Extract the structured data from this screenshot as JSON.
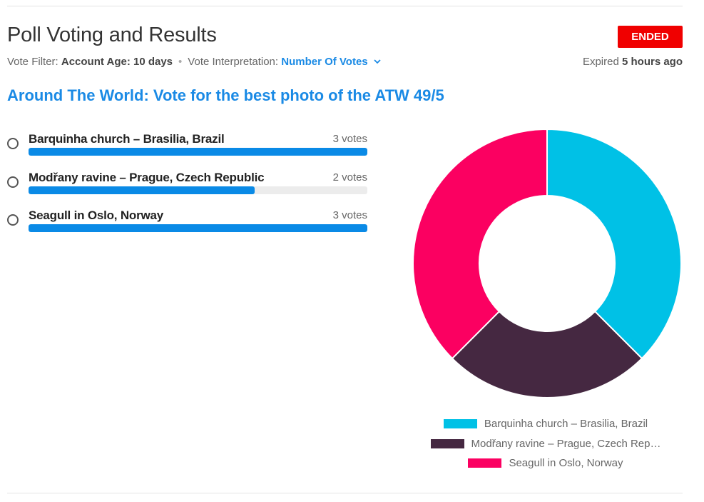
{
  "header": {
    "title": "Poll Voting and Results",
    "status": "ENDED",
    "vote_filter_label": "Vote Filter:",
    "vote_filter_value": "Account Age: 10 days",
    "separator": "•",
    "interpretation_label": "Vote Interpretation:",
    "interpretation_value": "Number Of Votes",
    "expired_label": "Expired",
    "expired_value": "5 hours ago"
  },
  "poll": {
    "question": "Around The World: Vote for the best photo of the ATW 49/5",
    "options": [
      {
        "label": "Barquinha church – Brasilia, Brazil",
        "votes_text": "3 votes",
        "votes": 3,
        "fill_fraction": 1.0
      },
      {
        "label": "Modřany ravine – Prague, Czech Republic",
        "votes_text": "2 votes",
        "votes": 2,
        "fill_fraction": 0.667
      },
      {
        "label": "Seagull in Oslo, Norway",
        "votes_text": "3 votes",
        "votes": 3,
        "fill_fraction": 1.0
      }
    ]
  },
  "chart_data": {
    "type": "pie",
    "categories": [
      "Barquinha church – Brasilia, Brazil",
      "Modřany ravine – Prague, Czech Republic",
      "Seagull in Oslo, Norway"
    ],
    "values": [
      3,
      2,
      3
    ],
    "colors": [
      "#00c1e6",
      "#452841",
      "#fb0061"
    ],
    "legend": {
      "position": "bottom",
      "labels": [
        "Barquinha church – Brasilia, Brazil",
        "Modřany ravine – Prague, Czech Rep…",
        "Seagull in Oslo, Norway"
      ]
    }
  },
  "colors": {
    "accent": "#1a8ae5",
    "bar": "#0a8ae6",
    "status": "#f00000"
  }
}
